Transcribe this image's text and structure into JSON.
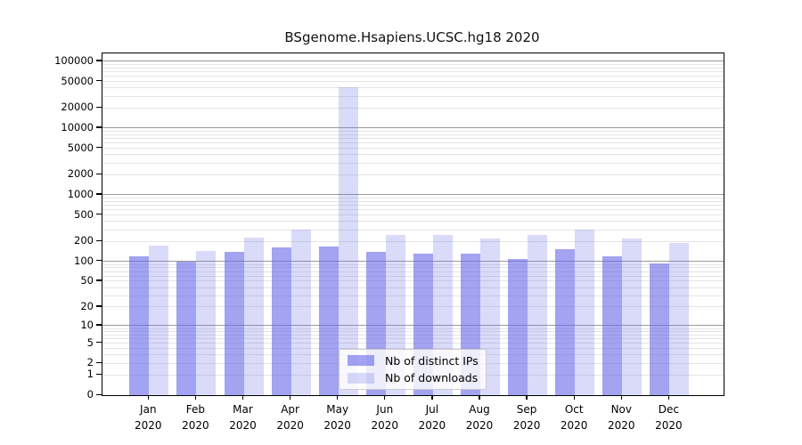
{
  "chart_data": {
    "type": "bar",
    "title": "BSgenome.Hsapiens.UCSC.hg18 2020",
    "year": "2020",
    "categories": [
      "Jan",
      "Feb",
      "Mar",
      "Apr",
      "May",
      "Jun",
      "Jul",
      "Aug",
      "Sep",
      "Oct",
      "Nov",
      "Dec"
    ],
    "series": [
      {
        "name": "Nb of distinct IPs",
        "color": "rgba(106,106,233,0.62)",
        "values": [
          120,
          98,
          140,
          165,
          170,
          140,
          130,
          130,
          110,
          155,
          118,
          92
        ]
      },
      {
        "name": "Nb of downloads",
        "color": "rgba(106,106,233,0.25)",
        "values": [
          175,
          146,
          225,
          300,
          41000,
          252,
          250,
          220,
          250,
          300,
          220,
          188
        ]
      }
    ],
    "y_ticks": [
      100000,
      50000,
      20000,
      10000,
      5000,
      2000,
      1000,
      500,
      200,
      100,
      50,
      20,
      10,
      5,
      2,
      1,
      0
    ],
    "y_scale": "log10(1+x)",
    "ylim": [
      0,
      131000
    ],
    "xlabel": "",
    "ylabel": "",
    "grid": true,
    "legend_position": "inside-bottom-center",
    "colors": {
      "bar_base": "#6a6ae9",
      "axis": "#000000",
      "grid_major": "#9a9a9a",
      "grid_minor": "#e5e5e5"
    }
  }
}
